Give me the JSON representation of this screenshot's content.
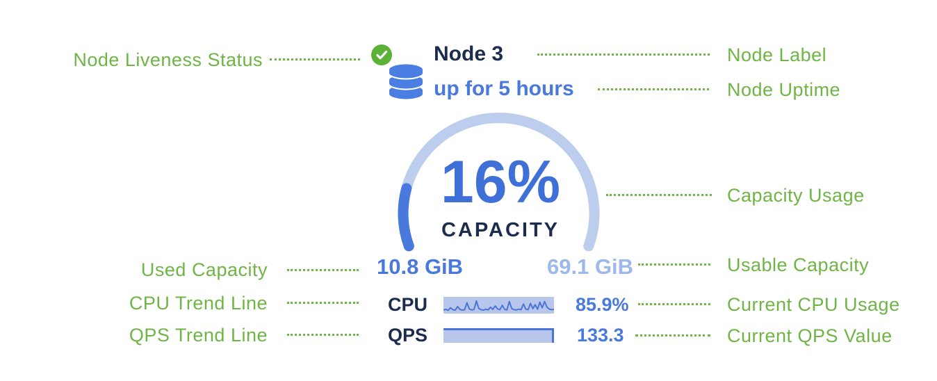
{
  "node_panel": {
    "label": "Node 3",
    "uptime": "up for 5 hours",
    "capacity_percent_label": "16%",
    "capacity_caption": "CAPACITY",
    "used_capacity": "10.8 GiB",
    "usable_capacity": "69.1 GiB",
    "cpu_label": "CPU",
    "cpu_value": "85.9%",
    "qps_label": "QPS",
    "qps_value": "133.3",
    "liveness_icon": "green-checkmark-circle",
    "node_icon": "database-cylinder"
  },
  "annotations": {
    "left": [
      {
        "label": "Node Liveness Status"
      },
      {
        "label": "Used Capacity"
      },
      {
        "label": "CPU Trend Line"
      },
      {
        "label": "QPS Trend Line"
      }
    ],
    "right": [
      {
        "label": "Node Label"
      },
      {
        "label": "Node Uptime"
      },
      {
        "label": "Capacity Usage"
      },
      {
        "label": "Usable Capacity"
      },
      {
        "label": "Current CPU Usage"
      },
      {
        "label": "Current QPS Value"
      }
    ]
  },
  "colors": {
    "annotation_green": "#6fb545",
    "liveness_green": "#5cb236",
    "navy_text": "#1b2c4d",
    "primary_blue": "#4a79dd",
    "gauge_track_blue": "#bccdee",
    "muted_blue_text": "#9db8ea",
    "spark_background": "#b8c6ec",
    "spark_line": "#4a74d8"
  },
  "chart_data": [
    {
      "type": "gauge",
      "label": "16%",
      "caption": "CAPACITY",
      "value_percent": 16,
      "used": "10.8 GiB",
      "usable": "69.1 GiB",
      "arc_start_deg": 200,
      "arc_sweep_deg": 220
    },
    {
      "type": "line",
      "name": "CPU Trend Line",
      "current": "85.9%",
      "unit": "fraction_of_sparkline_height",
      "values": [
        0.18,
        0.22,
        0.15,
        0.35,
        0.2,
        0.16,
        0.45,
        0.22,
        0.16,
        0.2,
        0.75,
        0.25,
        0.18,
        0.22,
        0.9,
        0.3,
        0.2,
        0.16,
        0.24,
        0.18,
        0.4,
        0.22,
        0.5,
        0.26,
        0.2,
        0.55,
        0.22,
        0.18,
        0.85,
        0.3,
        0.2,
        0.18,
        0.24,
        0.2,
        0.65,
        0.24,
        0.2,
        0.7,
        0.28,
        0.6,
        0.24,
        0.8,
        0.35,
        0.85,
        0.4,
        0.25,
        0.2,
        0.22
      ]
    },
    {
      "type": "area",
      "name": "QPS Trend Line",
      "current": 133.3,
      "unit": "fraction_of_bar_height",
      "values": [
        1,
        1,
        1,
        1,
        1,
        1,
        1,
        1,
        1,
        1,
        1,
        1,
        1,
        1,
        1,
        1,
        1,
        1,
        1,
        1
      ]
    }
  ]
}
